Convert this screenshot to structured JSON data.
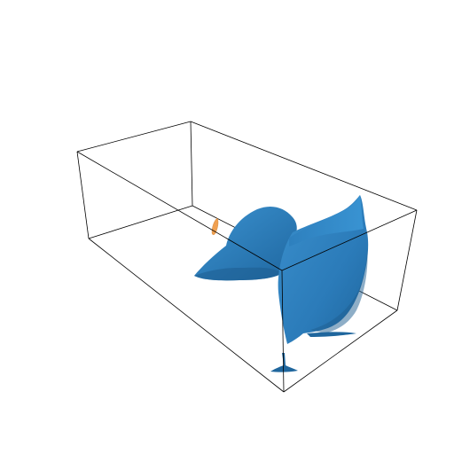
{
  "scene": {
    "type": "3d-isosurface-render",
    "background": "#ffffff",
    "bounding_box": {
      "color": "#000000",
      "visible": true
    },
    "surfaces": [
      {
        "name": "main-surface",
        "color": "#2b7bb9",
        "shade": "#1d5d8f",
        "highlight": "#3a8fcc"
      },
      {
        "name": "small-surface",
        "color": "#f0a050"
      }
    ],
    "axes_labels_visible": false
  }
}
